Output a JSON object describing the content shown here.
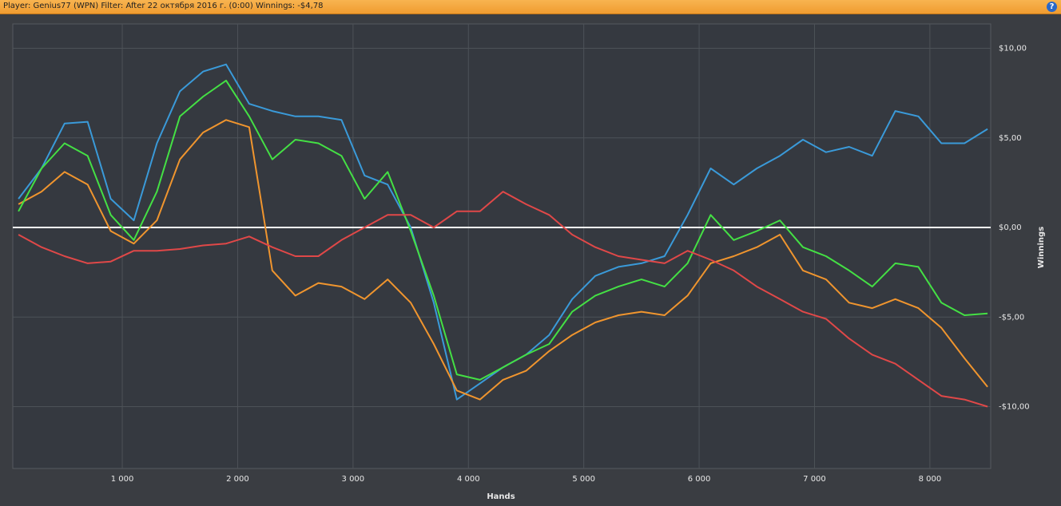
{
  "header": {
    "title": "Player: Genius77 (WPN) Filter: After 22 октября 2016 г. (0:00) Winnings: -$4,78",
    "help_icon": "?"
  },
  "chart_data": {
    "type": "line",
    "xlabel": "Hands",
    "ylabel": "Winnings",
    "x": [
      100,
      300,
      500,
      700,
      900,
      1100,
      1300,
      1500,
      1700,
      1900,
      2100,
      2300,
      2500,
      2700,
      2900,
      3100,
      3300,
      3500,
      3700,
      3900,
      4100,
      4300,
      4500,
      4700,
      4900,
      5100,
      5300,
      5500,
      5700,
      5900,
      6100,
      6300,
      6500,
      6700,
      6900,
      7100,
      7300,
      7500,
      7700,
      7900,
      8100,
      8300,
      8500
    ],
    "series": [
      {
        "color": "#3a9ad9",
        "values": [
          1.6,
          3.3,
          5.8,
          5.9,
          1.6,
          0.4,
          4.7,
          7.6,
          8.7,
          9.1,
          6.9,
          6.5,
          6.2,
          6.2,
          6.0,
          2.9,
          2.4,
          0.0,
          -4.2,
          -9.6,
          -8.7,
          -7.8,
          -7.1,
          -6.0,
          -4.0,
          -2.7,
          -2.2,
          -2.0,
          -1.6,
          0.7,
          3.3,
          2.4,
          3.3,
          4.0,
          4.9,
          4.2,
          4.5,
          4.0,
          6.5,
          6.2,
          4.7,
          4.7,
          5.5
        ]
      },
      {
        "color": "#f0952e",
        "values": [
          1.3,
          2.0,
          3.1,
          2.4,
          -0.2,
          -0.9,
          0.4,
          3.8,
          5.3,
          6.0,
          5.6,
          -2.4,
          -3.8,
          -3.1,
          -3.3,
          -4.0,
          -2.9,
          -4.2,
          -6.5,
          -9.1,
          -9.6,
          -8.5,
          -8.0,
          -6.9,
          -6.0,
          -5.3,
          -4.9,
          -4.7,
          -4.9,
          -3.8,
          -2.0,
          -1.6,
          -1.1,
          -0.4,
          -2.4,
          -2.9,
          -4.2,
          -4.5,
          -4.0,
          -4.5,
          -5.6,
          -7.3,
          -8.9
        ]
      },
      {
        "color": "#44e044",
        "values": [
          0.9,
          3.3,
          4.7,
          4.0,
          0.7,
          -0.7,
          2.0,
          6.2,
          7.3,
          8.2,
          6.2,
          3.8,
          4.9,
          4.7,
          4.0,
          1.6,
          3.1,
          -0.2,
          -3.8,
          -8.2,
          -8.5,
          -7.8,
          -7.1,
          -6.5,
          -4.7,
          -3.8,
          -3.3,
          -2.9,
          -3.3,
          -2.0,
          0.7,
          -0.7,
          -0.2,
          0.4,
          -1.1,
          -1.6,
          -2.4,
          -3.3,
          -2.0,
          -2.2,
          -4.2,
          -4.9,
          -4.8
        ]
      },
      {
        "color": "#e04848",
        "values": [
          -0.4,
          -1.1,
          -1.6,
          -2.0,
          -1.9,
          -1.3,
          -1.3,
          -1.2,
          -1.0,
          -0.9,
          -0.5,
          -1.1,
          -1.6,
          -1.6,
          -0.7,
          0.0,
          0.7,
          0.7,
          0.0,
          0.9,
          0.9,
          2.0,
          1.3,
          0.7,
          -0.4,
          -1.1,
          -1.6,
          -1.8,
          -2.0,
          -1.3,
          -1.8,
          -2.4,
          -3.3,
          -4.0,
          -4.7,
          -5.1,
          -6.2,
          -7.1,
          -7.6,
          -8.5,
          -9.4,
          -9.6,
          -10.0
        ]
      }
    ],
    "xlim": [
      51,
      8527
    ],
    "ylim": [
      -13.45,
      11.36
    ],
    "xticks": [
      {
        "value": 1000,
        "label": "1 000"
      },
      {
        "value": 2000,
        "label": "2 000"
      },
      {
        "value": 3000,
        "label": "3 000"
      },
      {
        "value": 4000,
        "label": "4 000"
      },
      {
        "value": 5000,
        "label": "5 000"
      },
      {
        "value": 6000,
        "label": "6 000"
      },
      {
        "value": 7000,
        "label": "7 000"
      },
      {
        "value": 8000,
        "label": "8 000"
      }
    ],
    "yticks": [
      {
        "value": 10,
        "label": "$10,00"
      },
      {
        "value": 5,
        "label": "$5,00"
      },
      {
        "value": 0,
        "label": "$0,00"
      },
      {
        "value": -5,
        "label": "-$5,00"
      },
      {
        "value": -10,
        "label": "-$10,00"
      }
    ],
    "grid": true,
    "zero_line_color": "#ffffff"
  }
}
